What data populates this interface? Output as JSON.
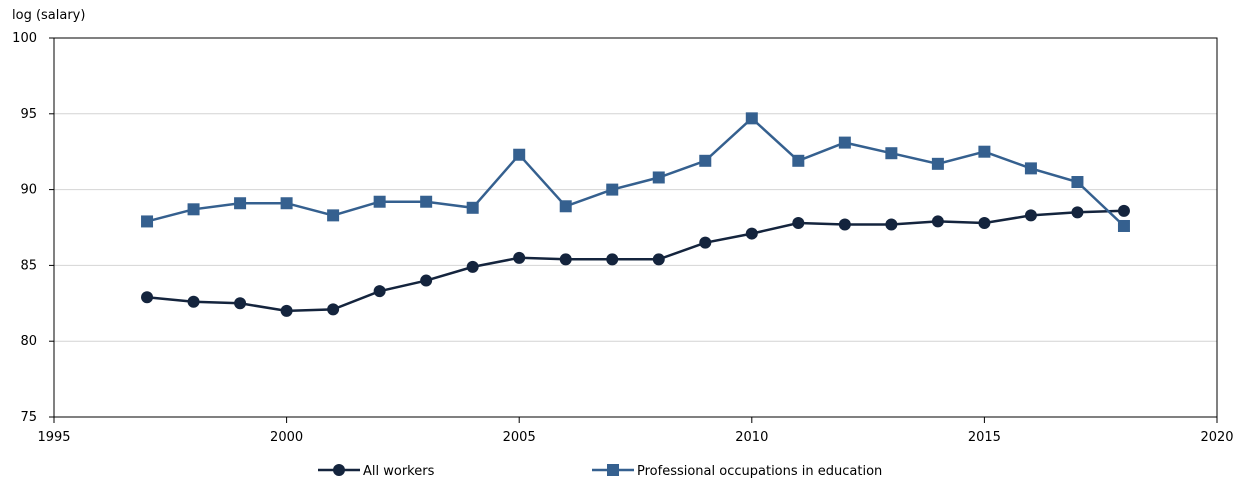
{
  "chart_data": {
    "type": "line",
    "title": "",
    "xlabel": "",
    "ylabel": "log (salary)",
    "xlim": [
      1995,
      2020
    ],
    "ylim": [
      75,
      100
    ],
    "x_ticks": [
      1995,
      2000,
      2005,
      2010,
      2015,
      2020
    ],
    "y_ticks": [
      75,
      80,
      85,
      90,
      95,
      100
    ],
    "grid": "horizontal",
    "legend_position": "bottom",
    "x": [
      1997,
      1998,
      1999,
      2000,
      2001,
      2002,
      2003,
      2004,
      2005,
      2006,
      2007,
      2008,
      2009,
      2010,
      2011,
      2012,
      2013,
      2014,
      2015,
      2016,
      2017,
      2018
    ],
    "series": [
      {
        "name": "All workers",
        "color": "#14243d",
        "marker": "circle",
        "values": [
          82.9,
          82.6,
          82.5,
          82.0,
          82.1,
          83.3,
          84.0,
          84.9,
          85.5,
          85.4,
          85.4,
          85.4,
          86.5,
          87.1,
          87.8,
          87.7,
          87.7,
          87.9,
          87.8,
          88.3,
          88.5,
          88.6
        ]
      },
      {
        "name": "Professional occupations in education",
        "color": "#35608f",
        "marker": "square",
        "values": [
          87.9,
          88.7,
          89.1,
          89.1,
          88.3,
          89.2,
          89.2,
          88.8,
          92.3,
          88.9,
          90.0,
          90.8,
          91.9,
          94.7,
          91.9,
          93.1,
          92.4,
          91.7,
          92.5,
          91.4,
          90.5,
          87.6
        ]
      }
    ]
  }
}
